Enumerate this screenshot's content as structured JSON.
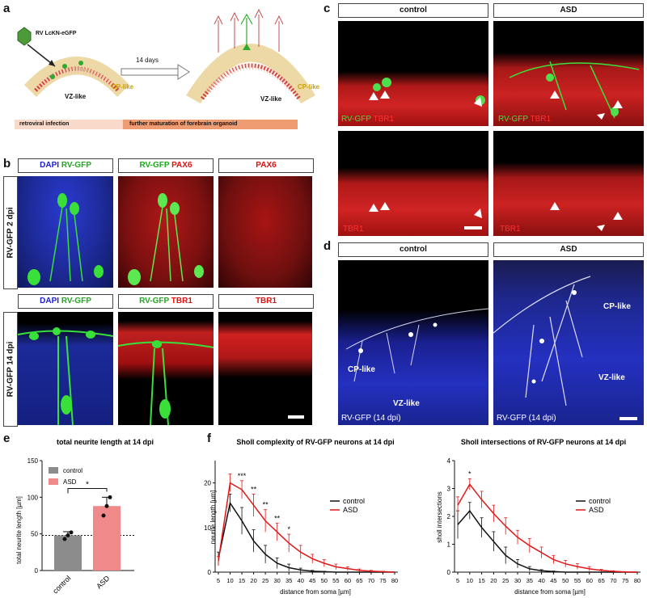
{
  "panels": {
    "a": "a",
    "b": "b",
    "c": "c",
    "d": "d",
    "e": "e",
    "f": "f"
  },
  "a": {
    "virus_label": "RV LcKN-eGFP",
    "arrow_label": "14 days",
    "cp_label": "CP-like",
    "vz_label": "VZ-like",
    "cp_label2": "CP-like",
    "vz_label2": "VZ-like",
    "bar_left": "retroviral infection",
    "bar_right": "further maturation of forebrain organoid",
    "colors": {
      "bar_left": "#f9d9c9",
      "bar_right": "#ef9c73",
      "cp": "#c8a000"
    }
  },
  "b": {
    "row1_label": "RV-GFP 2 dpi",
    "row2_label": "RV-GFP 14 dpi",
    "h1": {
      "a": "DAPI",
      "b": "RV-GFP"
    },
    "h2": {
      "a": "RV-GFP",
      "b": "PAX6"
    },
    "h3": {
      "a": "PAX6"
    },
    "h4": {
      "a": "DAPI",
      "b": "RV-GFP"
    },
    "h5": {
      "a": "RV-GFP",
      "b": "TBR1"
    },
    "h6": {
      "a": "TBR1"
    }
  },
  "c": {
    "control": "control",
    "asd": "ASD",
    "ov1": {
      "a": "RV-GFP",
      "b": "TBR1"
    },
    "ov2": {
      "a": "RV-GFP",
      "b": "TBR1"
    },
    "ov3": "TBR1",
    "ov4": "TBR1"
  },
  "d": {
    "control": "control",
    "asd": "ASD",
    "cp1": "CP-like",
    "vz1": "VZ-like",
    "cp2": "CP-like",
    "vz2": "VZ-like",
    "ov1": "RV-GFP (14 dpi)",
    "ov2": "RV-GFP (14 dpi)"
  },
  "chart_data": [
    {
      "type": "bar",
      "title": "total neurite length at 14 dpi",
      "categories": [
        "control",
        "ASD"
      ],
      "values": [
        48,
        88
      ],
      "errors": [
        5,
        12
      ],
      "points": [
        [
          43,
          48,
          52
        ],
        [
          75,
          88,
          100
        ]
      ],
      "ylabel": "total neurite length [µm]",
      "ylim": [
        0,
        150
      ],
      "yticks": [
        "0",
        "50",
        "100",
        "150"
      ],
      "legend": [
        "control",
        "ASD"
      ],
      "colors": [
        "#8c8c8c",
        "#f08a8a"
      ],
      "reference_line": 48,
      "significance": "*"
    },
    {
      "type": "line",
      "title": "Sholl complexity of RV-GFP neurons at 14 dpi",
      "x": [
        5,
        10,
        15,
        20,
        25,
        30,
        35,
        40,
        45,
        50,
        55,
        60,
        65,
        70,
        75,
        80
      ],
      "xticks": [
        "5",
        "10",
        "15",
        "20",
        "25",
        "30",
        "35",
        "40",
        "45",
        "50",
        "55",
        "60",
        "65",
        "70",
        "75",
        "80"
      ],
      "xlabel": "distance from soma [µm]",
      "ylabel": "neurite length [µm]",
      "ylim": [
        0,
        25
      ],
      "yticks": [
        "0",
        "10",
        "20"
      ],
      "series": [
        {
          "name": "control",
          "color": "#111111",
          "values": [
            3,
            15.5,
            11.5,
            7,
            4,
            2,
            1,
            0.5,
            0.2,
            0.1,
            0,
            0,
            0,
            0,
            0,
            0
          ],
          "errors": [
            1.5,
            2,
            3,
            2.5,
            2,
            1.2,
            0.8,
            0.4,
            0.2,
            0.1,
            0,
            0,
            0,
            0,
            0,
            0
          ]
        },
        {
          "name": "ASD",
          "color": "#e01818",
          "values": [
            2.5,
            20,
            18.5,
            15,
            11.5,
            9,
            6.5,
            4.5,
            3,
            2,
            1.2,
            0.8,
            0.4,
            0.2,
            0.1,
            0
          ],
          "errors": [
            1,
            2,
            2,
            2.5,
            2.5,
            2,
            2,
            1.5,
            1,
            0.8,
            0.6,
            0.4,
            0.3,
            0.2,
            0.1,
            0
          ]
        }
      ],
      "significance": [
        {
          "x": 15,
          "label": "***"
        },
        {
          "x": 20,
          "label": "**"
        },
        {
          "x": 25,
          "label": "**"
        },
        {
          "x": 30,
          "label": "**"
        },
        {
          "x": 35,
          "label": "*"
        }
      ]
    },
    {
      "type": "line",
      "title": "Sholl intersections of RV-GFP neurons at 14 dpi",
      "x": [
        5,
        10,
        15,
        20,
        25,
        30,
        35,
        40,
        45,
        50,
        55,
        60,
        65,
        70,
        75,
        80
      ],
      "xticks": [
        "5",
        "10",
        "15",
        "20",
        "25",
        "30",
        "35",
        "40",
        "45",
        "50",
        "55",
        "60",
        "65",
        "70",
        "75",
        "80"
      ],
      "xlabel": "distance from soma [µm]",
      "ylabel": "sholl intersections",
      "ylim": [
        0,
        4
      ],
      "yticks": [
        "0",
        "1",
        "2",
        "3",
        "4"
      ],
      "series": [
        {
          "name": "control",
          "color": "#111111",
          "values": [
            1.7,
            2.2,
            1.6,
            1.1,
            0.6,
            0.3,
            0.12,
            0.05,
            0.02,
            0,
            0,
            0,
            0,
            0,
            0,
            0
          ],
          "errors": [
            0.5,
            0.3,
            0.35,
            0.35,
            0.3,
            0.15,
            0.08,
            0.04,
            0.02,
            0,
            0,
            0,
            0,
            0,
            0,
            0
          ]
        },
        {
          "name": "ASD",
          "color": "#e01818",
          "values": [
            2.4,
            3.15,
            2.6,
            2.1,
            1.65,
            1.25,
            0.95,
            0.7,
            0.45,
            0.3,
            0.2,
            0.12,
            0.06,
            0.03,
            0.01,
            0
          ],
          "errors": [
            0.3,
            0.2,
            0.3,
            0.3,
            0.3,
            0.25,
            0.25,
            0.2,
            0.15,
            0.12,
            0.1,
            0.08,
            0.04,
            0.02,
            0.01,
            0
          ]
        }
      ],
      "significance": [
        {
          "x": 10,
          "label": "*"
        }
      ]
    }
  ]
}
